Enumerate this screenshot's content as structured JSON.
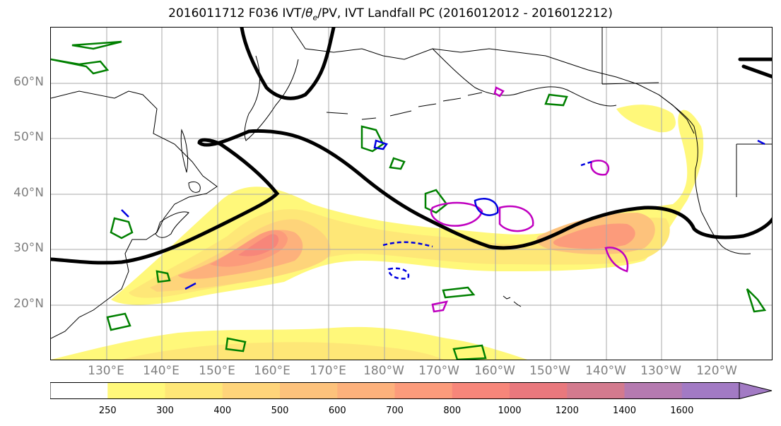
{
  "title_parts": {
    "prefix": "2016011712 F036 IVT/",
    "theta": "θ",
    "theta_sub": "e",
    "suffix": "/PV, IVT Landfall PC (2016012012 - 2016012212)"
  },
  "map": {
    "lat_labels": [
      "60°N",
      "50°N",
      "40°N",
      "30°N",
      "20°N"
    ],
    "lon_labels": [
      "130°E",
      "140°E",
      "150°E",
      "160°E",
      "170°E",
      "180°W",
      "170°W",
      "160°W",
      "150°W",
      "140°W",
      "130°W",
      "120°W"
    ],
    "lat_values": [
      60,
      50,
      40,
      30,
      20
    ],
    "lon_values": [
      130,
      140,
      150,
      160,
      170,
      180,
      190,
      200,
      210,
      220,
      230,
      240
    ],
    "extent": {
      "lon_min": 120,
      "lon_max": 250,
      "lat_min": 10,
      "lat_max": 70
    },
    "grid": true,
    "colors": {
      "land_outline": "#000000",
      "pv_contour": "#000000",
      "theta_e_contour": "#008000",
      "pc_positive": "#c000c0",
      "pc_negative": "#0000e0",
      "gridline": "#aaaaaa"
    }
  },
  "colorbar": {
    "levels": [
      "250",
      "300",
      "400",
      "500",
      "600",
      "700",
      "800",
      "1000",
      "1200",
      "1400",
      "1600"
    ],
    "colors": [
      "#ffffff",
      "#fff87a",
      "#fee777",
      "#fed47a",
      "#fdc27c",
      "#fdb17c",
      "#fc9b7b",
      "#f7867a",
      "#e9787d",
      "#d37a8e",
      "#b57ab0",
      "#a27ac4"
    ],
    "extend": "max"
  }
}
